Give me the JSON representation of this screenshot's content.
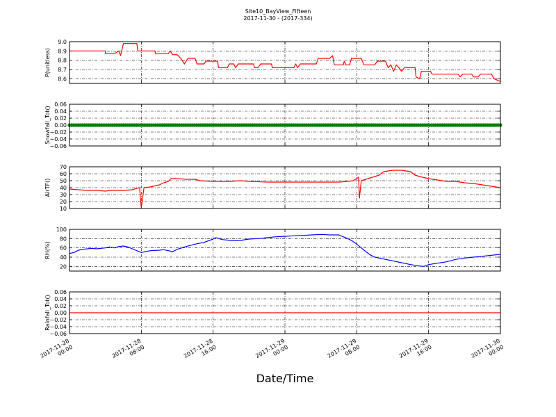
{
  "title": "Site10_BayView_Fifteen",
  "subtitle": "2017-11-30 - (2017-334)",
  "xlabel": "Date/Time",
  "x_tick_labels": [
    [
      "2017-11-28",
      "00:00"
    ],
    [
      "2017-11-28",
      "08:00"
    ],
    [
      "2017-11-28",
      "16:00"
    ],
    [
      "2017-11-29",
      "00:00"
    ],
    [
      "2017-11-29",
      "08:00"
    ],
    [
      "2017-11-29",
      "16:00"
    ],
    [
      "2017-11-30",
      "00:00"
    ]
  ],
  "colors": {
    "red": "#ff0000",
    "green": "#008000",
    "blue": "#0000ff"
  },
  "chart_data": [
    {
      "type": "line",
      "ylabel": "P(unitless)",
      "x_unit": "hours since 2017-11-28 00:00",
      "xlim": [
        0,
        48
      ],
      "ylim": [
        8.55,
        9.0
      ],
      "yticks": [
        "9.0",
        "8.9",
        "8.8",
        "8.7",
        "8.6"
      ],
      "ytick_values": [
        9.0,
        8.9,
        8.8,
        8.7,
        8.6
      ],
      "grid": true,
      "series": [
        {
          "color": "red",
          "points": [
            [
              0,
              8.9
            ],
            [
              4,
              8.9
            ],
            [
              4,
              8.87
            ],
            [
              5,
              8.87
            ],
            [
              5.5,
              8.9
            ],
            [
              5.7,
              8.85
            ],
            [
              6,
              8.98
            ],
            [
              7,
              8.98
            ],
            [
              7.5,
              8.98
            ],
            [
              7.6,
              8.9
            ],
            [
              9.5,
              8.9
            ],
            [
              9.6,
              8.87
            ],
            [
              11,
              8.87
            ],
            [
              11.2,
              8.9
            ],
            [
              11.5,
              8.86
            ],
            [
              12,
              8.86
            ],
            [
              12.4,
              8.82
            ],
            [
              12.8,
              8.76
            ],
            [
              13.2,
              8.82
            ],
            [
              14,
              8.82
            ],
            [
              14.2,
              8.76
            ],
            [
              15,
              8.76
            ],
            [
              15.2,
              8.79
            ],
            [
              16.5,
              8.79
            ],
            [
              16.6,
              8.72
            ],
            [
              17.6,
              8.72
            ],
            [
              17.8,
              8.76
            ],
            [
              18.3,
              8.76
            ],
            [
              18.5,
              8.72
            ],
            [
              18.8,
              8.76
            ],
            [
              20.5,
              8.76
            ],
            [
              20.6,
              8.72
            ],
            [
              21,
              8.72
            ],
            [
              21.3,
              8.76
            ],
            [
              22.5,
              8.76
            ],
            [
              22.6,
              8.72
            ],
            [
              25,
              8.72
            ],
            [
              25.2,
              8.76
            ],
            [
              25.4,
              8.72
            ],
            [
              25.7,
              8.76
            ],
            [
              27.5,
              8.76
            ],
            [
              27.7,
              8.82
            ],
            [
              29,
              8.82
            ],
            [
              29.3,
              8.85
            ],
            [
              29.5,
              8.75
            ],
            [
              30.5,
              8.75
            ],
            [
              30.6,
              8.79
            ],
            [
              30.8,
              8.75
            ],
            [
              31.2,
              8.75
            ],
            [
              31.4,
              8.82
            ],
            [
              32.5,
              8.82
            ],
            [
              32.8,
              8.75
            ],
            [
              34,
              8.75
            ],
            [
              34.3,
              8.79
            ],
            [
              35.2,
              8.79
            ],
            [
              35.5,
              8.72
            ],
            [
              35.8,
              8.75
            ],
            [
              36.1,
              8.68
            ],
            [
              36.4,
              8.75
            ],
            [
              36.7,
              8.72
            ],
            [
              37,
              8.68
            ],
            [
              37.3,
              8.72
            ],
            [
              38.5,
              8.72
            ],
            [
              38.6,
              8.62
            ],
            [
              39,
              8.6
            ],
            [
              39.2,
              8.68
            ],
            [
              40.2,
              8.68
            ],
            [
              40.4,
              8.65
            ],
            [
              43.3,
              8.65
            ],
            [
              43.5,
              8.62
            ],
            [
              43.8,
              8.65
            ],
            [
              44.8,
              8.65
            ],
            [
              45,
              8.62
            ],
            [
              45.5,
              8.62
            ],
            [
              45.8,
              8.65
            ],
            [
              47,
              8.65
            ],
            [
              47.3,
              8.6
            ],
            [
              48,
              8.57
            ]
          ]
        }
      ]
    },
    {
      "type": "scatter",
      "ylabel": "Snowfall_Tot()",
      "x_unit": "hours since 2017-11-28 00:00",
      "xlim": [
        0,
        48
      ],
      "ylim": [
        -0.06,
        0.06
      ],
      "yticks": [
        "0.06",
        "0.04",
        "0.02",
        "0.00",
        "−0.02",
        "−0.04",
        "−0.06"
      ],
      "ytick_values": [
        0.06,
        0.04,
        0.02,
        0.0,
        -0.02,
        -0.04,
        -0.06
      ],
      "grid": true,
      "series": [
        {
          "color": "green",
          "constant": 0.0,
          "marker": "dot",
          "x_range": [
            0,
            48
          ]
        }
      ]
    },
    {
      "type": "line",
      "ylabel": "AirTF()",
      "x_unit": "hours since 2017-11-28 00:00",
      "xlim": [
        0,
        48
      ],
      "ylim": [
        10,
        70
      ],
      "yticks": [
        "70",
        "60",
        "50",
        "40",
        "30",
        "20",
        "10"
      ],
      "ytick_values": [
        70,
        60,
        50,
        40,
        30,
        20,
        10
      ],
      "grid": true,
      "series": [
        {
          "color": "red",
          "points": [
            [
              0,
              38
            ],
            [
              1,
              37
            ],
            [
              2,
              36
            ],
            [
              3,
              36
            ],
            [
              4,
              35
            ],
            [
              4.5,
              36
            ],
            [
              5,
              36
            ],
            [
              6,
              36
            ],
            [
              7,
              37
            ],
            [
              7.5,
              39
            ],
            [
              7.8,
              40
            ],
            [
              8,
              11
            ],
            [
              8.3,
              40
            ],
            [
              9,
              41
            ],
            [
              10,
              44
            ],
            [
              10.5,
              47
            ],
            [
              11,
              49
            ],
            [
              11.3,
              53
            ],
            [
              12,
              53
            ],
            [
              13,
              52
            ],
            [
              14,
              52
            ],
            [
              14.5,
              50
            ],
            [
              16,
              49
            ],
            [
              18,
              49
            ],
            [
              19,
              50
            ],
            [
              20,
              49
            ],
            [
              22,
              48
            ],
            [
              24,
              48
            ],
            [
              26,
              48
            ],
            [
              28,
              48
            ],
            [
              30,
              48
            ],
            [
              31,
              49
            ],
            [
              31.6,
              50
            ],
            [
              32,
              53
            ],
            [
              32.2,
              55
            ],
            [
              32.3,
              25
            ],
            [
              32.5,
              50
            ],
            [
              33,
              52
            ],
            [
              34,
              56
            ],
            [
              34.5,
              58
            ],
            [
              35,
              63
            ],
            [
              36,
              65
            ],
            [
              37,
              65
            ],
            [
              38,
              63
            ],
            [
              38.5,
              58
            ],
            [
              39,
              56
            ],
            [
              40,
              53
            ],
            [
              41,
              51
            ],
            [
              42,
              49
            ],
            [
              43,
              49
            ],
            [
              44,
              47
            ],
            [
              45,
              46
            ],
            [
              46,
              44
            ],
            [
              47,
              42
            ],
            [
              48,
              40
            ]
          ]
        }
      ]
    },
    {
      "type": "line",
      "ylabel": "RH(%)",
      "x_unit": "hours since 2017-11-28 00:00",
      "xlim": [
        0,
        48
      ],
      "ylim": [
        10,
        100
      ],
      "yticks": [
        "100",
        "80",
        "60",
        "40",
        "20"
      ],
      "ytick_values": [
        100,
        80,
        60,
        40,
        20
      ],
      "grid": true,
      "series": [
        {
          "color": "blue",
          "points": [
            [
              0,
              48
            ],
            [
              0.5,
              50
            ],
            [
              1,
              55
            ],
            [
              1.5,
              57
            ],
            [
              2.5,
              59
            ],
            [
              3,
              58
            ],
            [
              4,
              60
            ],
            [
              4.5,
              62
            ],
            [
              5,
              60
            ],
            [
              5.5,
              63
            ],
            [
              6,
              64
            ],
            [
              6.5,
              62
            ],
            [
              7,
              58
            ],
            [
              7.5,
              54
            ],
            [
              8,
              50
            ],
            [
              8.5,
              52
            ],
            [
              9,
              54
            ],
            [
              10,
              55
            ],
            [
              10.5,
              56
            ],
            [
              11,
              54
            ],
            [
              11.5,
              52
            ],
            [
              12,
              57
            ],
            [
              13,
              63
            ],
            [
              14,
              68
            ],
            [
              15,
              72
            ],
            [
              16,
              79
            ],
            [
              16.3,
              82
            ],
            [
              17,
              78
            ],
            [
              18,
              76
            ],
            [
              19,
              76
            ],
            [
              20,
              79
            ],
            [
              21,
              80
            ],
            [
              22,
              82
            ],
            [
              23,
              84
            ],
            [
              24,
              85
            ],
            [
              25,
              86
            ],
            [
              26,
              87
            ],
            [
              27,
              88
            ],
            [
              28,
              89
            ],
            [
              29,
              88
            ],
            [
              30,
              88
            ],
            [
              31,
              80
            ],
            [
              31.5,
              75
            ],
            [
              32,
              68
            ],
            [
              32.5,
              60
            ],
            [
              33,
              52
            ],
            [
              33.5,
              45
            ],
            [
              34,
              40
            ],
            [
              35,
              36
            ],
            [
              36,
              32
            ],
            [
              37,
              28
            ],
            [
              38,
              24
            ],
            [
              39,
              21
            ],
            [
              39.5,
              20
            ],
            [
              40,
              24
            ],
            [
              41,
              27
            ],
            [
              42,
              30
            ],
            [
              43,
              35
            ],
            [
              44,
              38
            ],
            [
              45,
              40
            ],
            [
              46,
              42
            ],
            [
              47,
              44
            ],
            [
              48,
              46
            ]
          ]
        }
      ]
    },
    {
      "type": "line",
      "ylabel": "Rainfall_Tot()",
      "x_unit": "hours since 2017-11-28 00:00",
      "xlim": [
        0,
        48
      ],
      "ylim": [
        -0.06,
        0.06
      ],
      "yticks": [
        "0.06",
        "0.04",
        "0.02",
        "0.00",
        "−0.02",
        "−0.04",
        "−0.06"
      ],
      "ytick_values": [
        0.06,
        0.04,
        0.02,
        0.0,
        -0.02,
        -0.04,
        -0.06
      ],
      "grid": true,
      "series": [
        {
          "color": "red",
          "points": [
            [
              0,
              0.0
            ],
            [
              48,
              0.0
            ]
          ]
        }
      ]
    }
  ]
}
